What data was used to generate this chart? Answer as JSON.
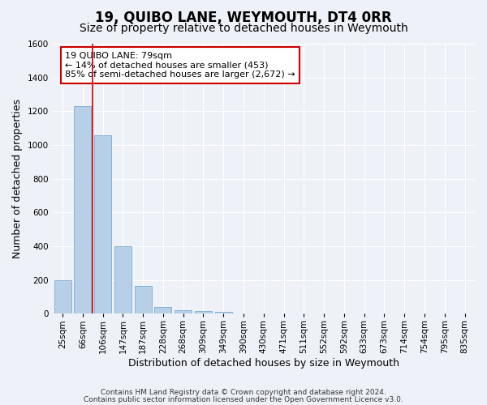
{
  "title": "19, QUIBO LANE, WEYMOUTH, DT4 0RR",
  "subtitle": "Size of property relative to detached houses in Weymouth",
  "xlabel": "Distribution of detached houses by size in Weymouth",
  "ylabel": "Number of detached properties",
  "bar_labels": [
    "25sqm",
    "66sqm",
    "106sqm",
    "147sqm",
    "187sqm",
    "228sqm",
    "268sqm",
    "309sqm",
    "349sqm",
    "390sqm",
    "430sqm",
    "471sqm",
    "511sqm",
    "552sqm",
    "592sqm",
    "633sqm",
    "673sqm",
    "714sqm",
    "754sqm",
    "795sqm",
    "835sqm"
  ],
  "bar_values": [
    200,
    1230,
    1060,
    400,
    165,
    40,
    20,
    15,
    10,
    0,
    0,
    0,
    0,
    0,
    0,
    0,
    0,
    0,
    0,
    0,
    0
  ],
  "bar_color": "#b8cfe8",
  "bar_edge_color": "#7aaad0",
  "vline_x": 1.5,
  "vline_color": "#cc0000",
  "ylim": [
    0,
    1600
  ],
  "yticks": [
    0,
    200,
    400,
    600,
    800,
    1000,
    1200,
    1400,
    1600
  ],
  "annotation_text": "19 QUIBO LANE: 79sqm\n← 14% of detached houses are smaller (453)\n85% of semi-detached houses are larger (2,672) →",
  "annotation_box_color": "#ffffff",
  "annotation_box_edge_color": "#cc0000",
  "footer1": "Contains HM Land Registry data © Crown copyright and database right 2024.",
  "footer2": "Contains public sector information licensed under the Open Government Licence v3.0.",
  "background_color": "#eef2f8",
  "grid_color": "#ffffff",
  "title_fontsize": 12,
  "subtitle_fontsize": 10,
  "axis_label_fontsize": 9,
  "tick_fontsize": 7.5,
  "annotation_fontsize": 8,
  "footer_fontsize": 6.5
}
